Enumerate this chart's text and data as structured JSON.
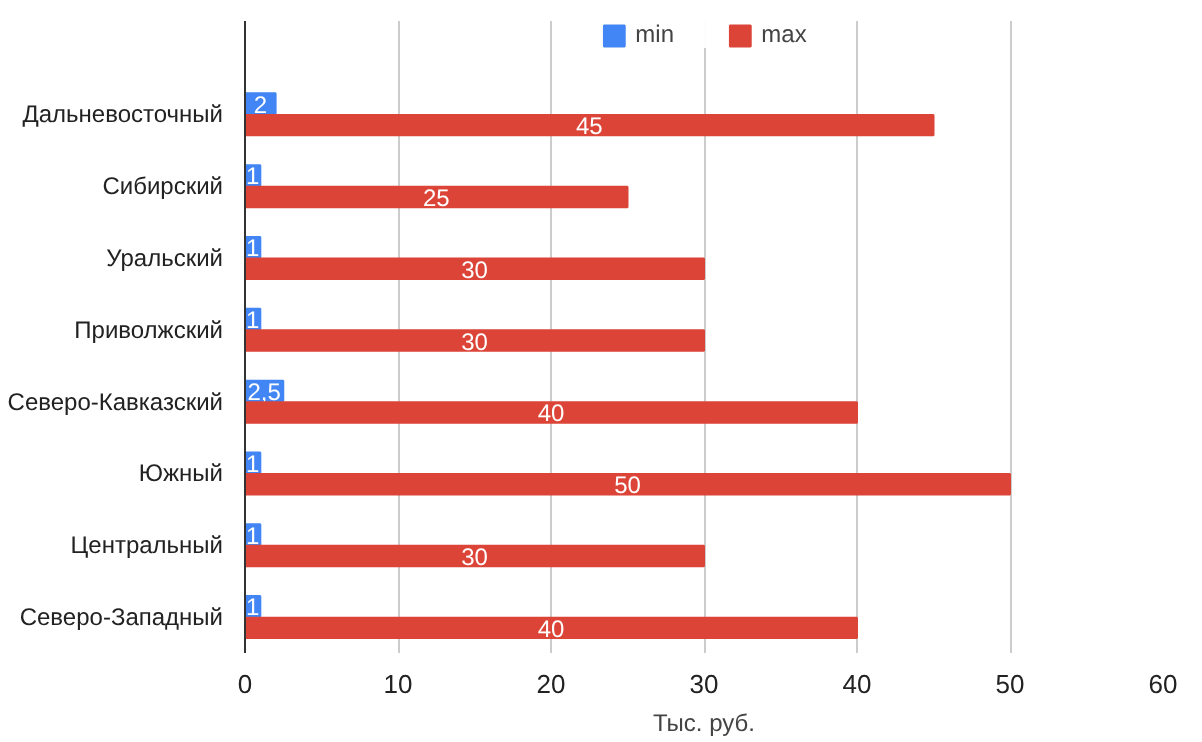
{
  "chart_data": {
    "type": "bar",
    "orientation": "horizontal",
    "xlabel": "Тыс. руб.",
    "categories": [
      "Дальневосточный",
      "Сибирский",
      "Уральский",
      "Приволжский",
      "Северо-Кавказский",
      "Южный",
      "Центральный",
      "Северо-Западный"
    ],
    "series": [
      {
        "name": "min",
        "color": "#4285f4",
        "values": [
          2,
          1,
          1,
          1,
          2.5,
          1,
          1,
          1
        ],
        "value_labels": [
          "2",
          "1",
          "1",
          "1",
          "2,5",
          "1",
          "1",
          "1"
        ]
      },
      {
        "name": "max",
        "color": "#db4437",
        "values": [
          45,
          25,
          30,
          30,
          40,
          50,
          30,
          40
        ],
        "value_labels": [
          "45",
          "25",
          "30",
          "30",
          "40",
          "50",
          "30",
          "40"
        ]
      }
    ],
    "xlim": [
      0,
      60
    ],
    "xticks": [
      0,
      10,
      20,
      30,
      40,
      50,
      60
    ],
    "grid": "x",
    "legend": "top"
  }
}
